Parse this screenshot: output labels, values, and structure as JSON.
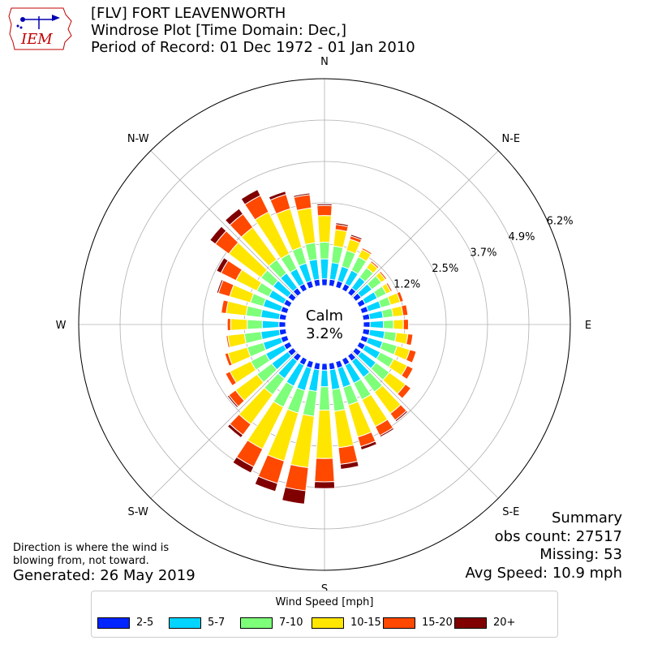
{
  "header": {
    "title_line1": "[FLV] FORT LEAVENWORTH",
    "title_line2": "Windrose Plot [Time Domain: Dec,]",
    "title_line3": "Period of Record: 01 Dec 1972 - 01 Jan 2010",
    "logo_text": "IEM"
  },
  "summary": {
    "title": "Summary",
    "obs_count": "obs count: 27517",
    "missing": "Missing: 53",
    "avg_speed": "Avg Speed: 10.9 mph"
  },
  "footnote": {
    "line1": "Direction is where the wind is",
    "line2": "blowing from, not toward."
  },
  "generated": "Generated: 26 May 2019",
  "chart_data": {
    "type": "windrose",
    "calm_label": "Calm",
    "calm_value": "3.2%",
    "radial_ticks": [
      "1.2%",
      "2.5%",
      "3.7%",
      "4.9%",
      "6.2%"
    ],
    "radial_tick_values": [
      1.24,
      2.48,
      3.72,
      4.96,
      6.2
    ],
    "rmax": 6.2,
    "directions": [
      "N",
      "N-E",
      "E",
      "S-E",
      "S",
      "S-W",
      "W",
      "N-W"
    ],
    "direction_angles": [
      0,
      45,
      90,
      135,
      180,
      225,
      270,
      315
    ],
    "sector_angles": [
      0,
      10,
      20,
      30,
      40,
      50,
      60,
      70,
      80,
      90,
      100,
      110,
      120,
      130,
      140,
      150,
      160,
      170,
      180,
      190,
      200,
      210,
      220,
      230,
      240,
      250,
      260,
      270,
      280,
      290,
      300,
      310,
      320,
      330,
      340,
      350
    ],
    "legend_title": "Wind Speed [mph]",
    "series": [
      {
        "name": "2-5",
        "color": "#0025ff",
        "values": [
          0.2,
          0.2,
          0.2,
          0.2,
          0.2,
          0.2,
          0.2,
          0.2,
          0.2,
          0.2,
          0.2,
          0.2,
          0.2,
          0.2,
          0.2,
          0.2,
          0.2,
          0.2,
          0.2,
          0.2,
          0.2,
          0.2,
          0.2,
          0.2,
          0.2,
          0.2,
          0.2,
          0.2,
          0.2,
          0.2,
          0.2,
          0.2,
          0.2,
          0.2,
          0.2,
          0.2
        ]
      },
      {
        "name": "5-7",
        "color": "#00d4ff",
        "values": [
          0.6,
          0.5,
          0.45,
          0.45,
          0.4,
          0.4,
          0.4,
          0.4,
          0.4,
          0.4,
          0.45,
          0.45,
          0.5,
          0.55,
          0.6,
          0.6,
          0.6,
          0.6,
          0.5,
          0.65,
          0.7,
          0.7,
          0.65,
          0.6,
          0.6,
          0.55,
          0.55,
          0.5,
          0.55,
          0.55,
          0.5,
          0.55,
          0.55,
          0.5,
          0.55,
          0.6
        ]
      },
      {
        "name": "7-10",
        "color": "#7dff7a",
        "values": [
          0.5,
          0.5,
          0.5,
          0.45,
          0.35,
          0.35,
          0.3,
          0.3,
          0.3,
          0.3,
          0.35,
          0.45,
          0.45,
          0.5,
          0.55,
          0.55,
          0.55,
          0.65,
          0.7,
          0.75,
          0.7,
          0.7,
          0.6,
          0.55,
          0.5,
          0.5,
          0.5,
          0.45,
          0.45,
          0.4,
          0.4,
          0.45,
          0.5,
          0.5,
          0.5,
          0.5
        ]
      },
      {
        "name": "10-15",
        "color": "#ffe600",
        "values": [
          0.8,
          0.5,
          0.35,
          0.25,
          0.2,
          0.15,
          0.15,
          0.3,
          0.3,
          0.3,
          0.35,
          0.4,
          0.45,
          0.6,
          0.8,
          0.9,
          1.0,
          1.1,
          1.45,
          1.55,
          1.5,
          1.4,
          1.1,
          0.8,
          0.7,
          0.6,
          0.5,
          0.5,
          0.6,
          0.65,
          0.7,
          1.2,
          1.2,
          1.4,
          1.2,
          1.05
        ]
      },
      {
        "name": "15-20",
        "color": "#ff4800",
        "values": [
          0.3,
          0.15,
          0.1,
          0.05,
          0.05,
          0.05,
          0.05,
          0.1,
          0.15,
          0.15,
          0.15,
          0.2,
          0.2,
          0.2,
          0.25,
          0.3,
          0.3,
          0.5,
          0.7,
          0.7,
          0.7,
          0.6,
          0.4,
          0.25,
          0.15,
          0.1,
          0.05,
          0.1,
          0.15,
          0.35,
          0.5,
          0.5,
          0.5,
          0.55,
          0.45,
          0.4
        ]
      },
      {
        "name": "20+",
        "color": "#800000",
        "values": [
          0.05,
          0.05,
          0.05,
          0.0,
          0.0,
          0.0,
          0.0,
          0.0,
          0.0,
          0.0,
          0.0,
          0.0,
          0.0,
          0.0,
          0.05,
          0.05,
          0.1,
          0.15,
          0.2,
          0.4,
          0.25,
          0.2,
          0.1,
          0.05,
          0.02,
          0.02,
          0.02,
          0.02,
          0.02,
          0.05,
          0.15,
          0.2,
          0.2,
          0.2,
          0.1,
          0.05
        ]
      }
    ]
  }
}
